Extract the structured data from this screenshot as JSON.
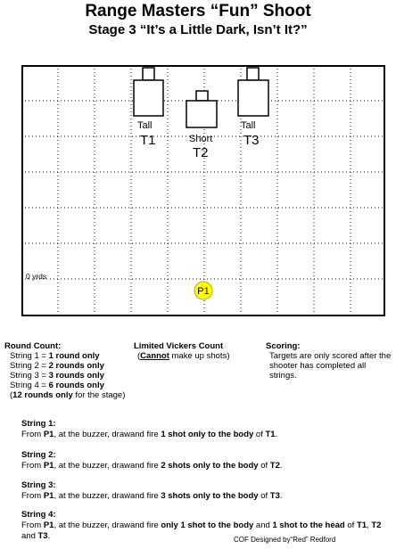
{
  "header": {
    "title": "Range Masters “Fun” Shoot",
    "subtitle": "Stage 3  “It’s a Little Dark, Isn’t It?”"
  },
  "diagram": {
    "distance_label": "0 yrds",
    "position_label": "P1",
    "targets": [
      {
        "size": "Tall",
        "id": "T1"
      },
      {
        "size": "Short",
        "id": "T2"
      },
      {
        "size": "Tall",
        "id": "T3"
      }
    ]
  },
  "round_count": {
    "heading": "Round Count:",
    "lines": [
      {
        "prefix": "String 1 = ",
        "value": "1 round only",
        "suffix": ""
      },
      {
        "prefix": "String 2 = ",
        "value": "2 rounds only",
        "suffix": ""
      },
      {
        "prefix": "String 3 = ",
        "value": "3 rounds only",
        "suffix": ""
      },
      {
        "prefix": "String 4 = ",
        "value": "6 rounds only",
        "suffix": ""
      },
      {
        "prefix": "(",
        "value": "12 rounds only",
        "suffix": " for the stage)"
      }
    ]
  },
  "vickers": {
    "heading": "Limited Vickers Count",
    "open": "(",
    "cannot": "Cannot",
    "rest": " make up shots)"
  },
  "scoring": {
    "heading": "Scoring:",
    "text": "Targets are only scored after the shooter has completed all strings."
  },
  "strings": [
    {
      "label": "String 1:",
      "parts": [
        {
          "t": "From ",
          "b": false
        },
        {
          "t": "P1",
          "b": true
        },
        {
          "t": ", at the buzzer, drawand fire ",
          "b": false
        },
        {
          "t": "1 shot only to the body",
          "b": true
        },
        {
          "t": " of ",
          "b": false
        },
        {
          "t": "T1",
          "b": true
        },
        {
          "t": ".",
          "b": false
        }
      ]
    },
    {
      "label": "String 2:",
      "parts": [
        {
          "t": "From ",
          "b": false
        },
        {
          "t": "P1",
          "b": true
        },
        {
          "t": ", at the buzzer, drawand fire ",
          "b": false
        },
        {
          "t": "2 shots only to the body",
          "b": true
        },
        {
          "t": " of ",
          "b": false
        },
        {
          "t": "T2",
          "b": true
        },
        {
          "t": ".",
          "b": false
        }
      ]
    },
    {
      "label": "String 3:",
      "parts": [
        {
          "t": "From ",
          "b": false
        },
        {
          "t": "P1",
          "b": true
        },
        {
          "t": ", at the buzzer, drawand fire ",
          "b": false
        },
        {
          "t": "3 shots only to the body",
          "b": true
        },
        {
          "t": " of ",
          "b": false
        },
        {
          "t": "T3",
          "b": true
        },
        {
          "t": ".",
          "b": false
        }
      ]
    },
    {
      "label": "String 4:",
      "parts": [
        {
          "t": "From ",
          "b": false
        },
        {
          "t": "P1",
          "b": true
        },
        {
          "t": ", at the buzzer, drawand fire ",
          "b": false
        },
        {
          "t": "only 1 shot to the body",
          "b": true
        },
        {
          "t": " and ",
          "b": false
        },
        {
          "t": "1 shot to the head",
          "b": true
        },
        {
          "t": " of ",
          "b": false
        },
        {
          "t": "T1",
          "b": true
        },
        {
          "t": ", ",
          "b": false
        },
        {
          "t": "T2",
          "b": true
        },
        {
          "t": " and ",
          "b": false
        },
        {
          "t": "T3",
          "b": true
        },
        {
          "t": ".",
          "b": false
        }
      ]
    }
  ],
  "credit": "COF Designed by“Red” Redford"
}
